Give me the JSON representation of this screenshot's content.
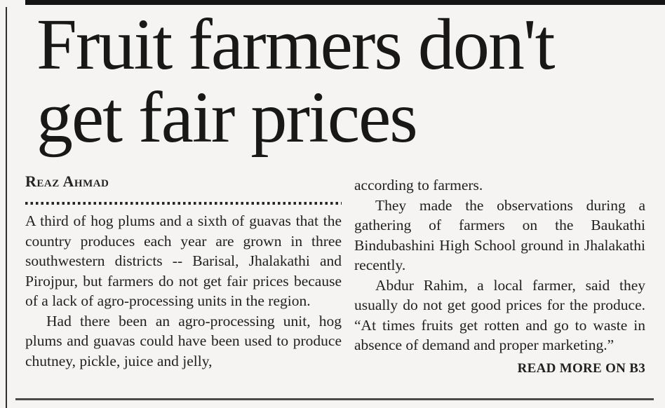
{
  "page": {
    "background_color": "#f5f4f2",
    "ink_color": "#1d1d1b",
    "accent_rule_color": "#4a4a48"
  },
  "article": {
    "headline": {
      "line1": "Fruit farmers don't",
      "line2": "get fair prices"
    },
    "byline": "Reaz Ahmad",
    "columns": [
      {
        "paragraphs": [
          "A third of hog plums and a sixth of guavas that the country produces each year are grown in three southwestern districts -- Barisal, Jhalakathi and Pirojpur, but farmers do not get fair prices because of a lack of agro-processing units in the region.",
          "Had there been an agro-processing unit, hog plums and guavas could have been used to produce chutney, pickle, juice and jelly,"
        ]
      },
      {
        "paragraphs": [
          "according to farmers.",
          "They made the observations during a gathering of farmers on the Baukathi Bindubashini High School ground in Jhalakathi recently.",
          "Abdur Rahim, a local farmer, said they usually do not get good prices for the produce. “At times fruits get rotten and go to waste in absence of demand and proper marketing.”"
        ]
      }
    ],
    "read_more": "READ MORE ON B3"
  }
}
